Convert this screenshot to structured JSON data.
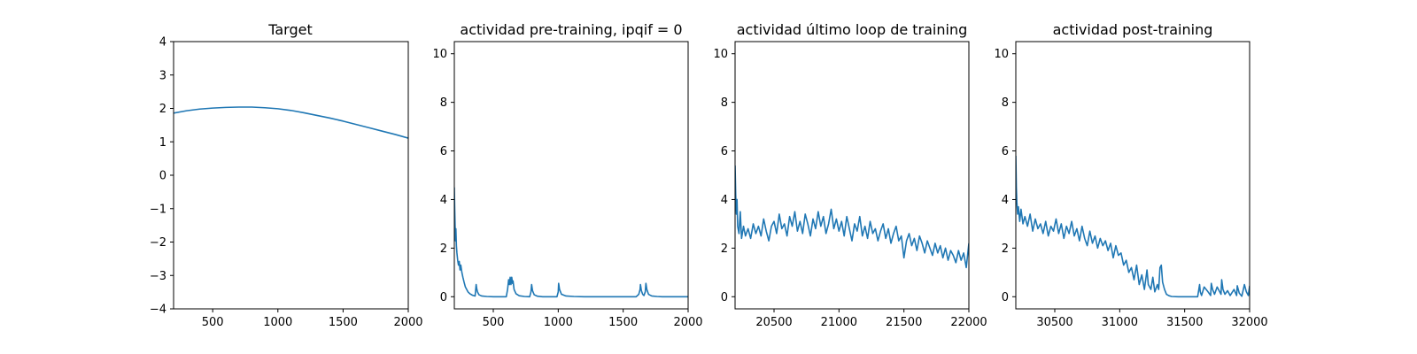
{
  "chart_data": [
    {
      "type": "line",
      "title": "Target",
      "xlabel": "",
      "ylabel": "",
      "xlim": [
        200,
        2000
      ],
      "ylim": [
        -4,
        4
      ],
      "xticks": [
        500,
        1000,
        1500,
        2000
      ],
      "yticks": [
        -4,
        -3,
        -2,
        -1,
        0,
        1,
        2,
        3,
        4
      ],
      "grid": false,
      "series_color": "#1f77b4",
      "series": [
        {
          "x": [
            200,
            300,
            400,
            500,
            600,
            700,
            750,
            800,
            900,
            1000,
            1100,
            1200,
            1300,
            1400,
            1500,
            1600,
            1700,
            1800,
            1900,
            2000
          ],
          "y": [
            1.86,
            1.93,
            1.98,
            2.01,
            2.03,
            2.04,
            2.04,
            2.04,
            2.02,
            1.99,
            1.94,
            1.87,
            1.79,
            1.71,
            1.62,
            1.52,
            1.42,
            1.32,
            1.22,
            1.11
          ]
        }
      ]
    },
    {
      "type": "line",
      "title": "actividad pre-training, ipqif = 0",
      "xlabel": "",
      "ylabel": "",
      "xlim": [
        200,
        2000
      ],
      "ylim": [
        -0.5,
        10.5
      ],
      "xticks": [
        500,
        1000,
        1500,
        2000
      ],
      "yticks": [
        0,
        2,
        4,
        6,
        8,
        10
      ],
      "grid": false,
      "series_color": "#1f77b4",
      "series": [
        {
          "x": [
            200,
            203,
            206,
            209,
            212,
            216,
            220,
            226,
            232,
            238,
            244,
            250,
            258,
            266,
            275,
            285,
            295,
            305,
            320,
            340,
            360,
            368,
            372,
            378,
            390,
            410,
            450,
            500,
            550,
            600,
            610,
            618,
            624,
            630,
            636,
            642,
            648,
            652,
            660,
            675,
            700,
            740,
            780,
            790,
            795,
            802,
            815,
            840,
            880,
            940,
            990,
            1000,
            1003,
            1010,
            1025,
            1060,
            1120,
            1200,
            1300,
            1400,
            1500,
            1600,
            1620,
            1630,
            1633,
            1640,
            1650,
            1660,
            1670,
            1675,
            1682,
            1695,
            1720,
            1760,
            1800,
            1850,
            1900,
            1950,
            2000
          ],
          "y": [
            4.5,
            3.6,
            2.9,
            2.3,
            2.8,
            2.1,
            1.8,
            1.5,
            1.3,
            1.45,
            1.1,
            1.3,
            1.0,
            0.8,
            0.6,
            0.4,
            0.3,
            0.2,
            0.12,
            0.06,
            0.03,
            0.5,
            0.35,
            0.2,
            0.08,
            0.03,
            0.01,
            0.0,
            0.0,
            0.0,
            0.3,
            0.7,
            0.5,
            0.8,
            0.5,
            0.8,
            0.55,
            0.65,
            0.3,
            0.12,
            0.04,
            0.01,
            0.0,
            0.2,
            0.5,
            0.25,
            0.08,
            0.02,
            0.0,
            0.0,
            0.0,
            0.2,
            0.55,
            0.3,
            0.1,
            0.03,
            0.01,
            0.0,
            0.0,
            0.0,
            0.0,
            0.0,
            0.1,
            0.3,
            0.5,
            0.25,
            0.1,
            0.05,
            0.2,
            0.55,
            0.3,
            0.1,
            0.03,
            0.01,
            0.0,
            0.0,
            0.0,
            0.0,
            0.0
          ]
        }
      ]
    },
    {
      "type": "line",
      "title": "actividad último loop de training",
      "xlabel": "",
      "ylabel": "",
      "xlim": [
        20200,
        22000
      ],
      "ylim": [
        -0.5,
        10.5
      ],
      "xticks": [
        20500,
        21000,
        21500,
        22000
      ],
      "yticks": [
        0,
        2,
        4,
        6,
        8,
        10
      ],
      "grid": false,
      "series_color": "#1f77b4",
      "series": [
        {
          "x": [
            20200,
            20205,
            20210,
            20215,
            20220,
            20230,
            20240,
            20250,
            20265,
            20280,
            20300,
            20320,
            20340,
            20360,
            20380,
            20400,
            20420,
            20440,
            20460,
            20480,
            20500,
            20520,
            20540,
            20560,
            20580,
            20600,
            20620,
            20640,
            20660,
            20680,
            20700,
            20720,
            20740,
            20760,
            20780,
            20800,
            20820,
            20840,
            20860,
            20880,
            20900,
            20920,
            20940,
            20960,
            20980,
            21000,
            21020,
            21040,
            21060,
            21080,
            21100,
            21120,
            21140,
            21160,
            21180,
            21200,
            21220,
            21240,
            21260,
            21280,
            21300,
            21320,
            21340,
            21360,
            21380,
            21400,
            21420,
            21440,
            21460,
            21480,
            21500,
            21520,
            21540,
            21560,
            21580,
            21600,
            21620,
            21640,
            21660,
            21680,
            21700,
            21720,
            21740,
            21760,
            21780,
            21800,
            21820,
            21840,
            21860,
            21880,
            21900,
            21920,
            21940,
            21960,
            21980,
            22000
          ],
          "y": [
            5.4,
            4.2,
            3.4,
            4.0,
            2.9,
            2.6,
            3.5,
            2.4,
            2.9,
            2.5,
            2.8,
            2.4,
            3.0,
            2.6,
            2.9,
            2.5,
            3.2,
            2.7,
            2.3,
            2.9,
            3.1,
            2.6,
            3.4,
            2.8,
            3.0,
            2.5,
            3.3,
            2.9,
            3.5,
            2.7,
            3.1,
            2.6,
            3.4,
            3.0,
            2.5,
            3.2,
            2.8,
            3.5,
            2.9,
            3.3,
            2.6,
            3.0,
            3.6,
            2.8,
            3.2,
            2.7,
            3.1,
            2.5,
            3.3,
            2.8,
            2.3,
            3.0,
            2.7,
            3.3,
            2.5,
            2.9,
            2.4,
            3.1,
            2.6,
            2.8,
            2.3,
            2.7,
            3.0,
            2.4,
            2.8,
            2.2,
            2.6,
            2.9,
            2.3,
            2.5,
            1.6,
            2.3,
            2.6,
            2.1,
            2.4,
            1.9,
            2.5,
            2.2,
            1.8,
            2.3,
            2.0,
            1.7,
            2.2,
            1.8,
            2.1,
            1.6,
            2.0,
            1.5,
            1.9,
            1.7,
            1.4,
            1.9,
            1.5,
            1.8,
            1.2,
            2.2
          ]
        }
      ]
    },
    {
      "type": "line",
      "title": "actividad post-training",
      "xlabel": "",
      "ylabel": "",
      "xlim": [
        30200,
        32000
      ],
      "ylim": [
        -0.5,
        10.5
      ],
      "xticks": [
        30500,
        31000,
        31500,
        32000
      ],
      "yticks": [
        0,
        2,
        4,
        6,
        8,
        10
      ],
      "grid": false,
      "series_color": "#1f77b4",
      "series": [
        {
          "x": [
            30200,
            30204,
            30208,
            30214,
            30220,
            30230,
            30240,
            30255,
            30270,
            30290,
            30310,
            30330,
            30350,
            30370,
            30390,
            30410,
            30430,
            30450,
            30470,
            30490,
            30510,
            30530,
            30550,
            30570,
            30590,
            30610,
            30630,
            30650,
            30670,
            30690,
            30710,
            30730,
            30750,
            30770,
            30790,
            30810,
            30830,
            30850,
            30870,
            30890,
            30910,
            30930,
            30950,
            30970,
            30990,
            31010,
            31030,
            31050,
            31070,
            31090,
            31110,
            31130,
            31150,
            31170,
            31190,
            31200,
            31210,
            31220,
            31240,
            31255,
            31270,
            31290,
            31300,
            31310,
            31320,
            31330,
            31345,
            31360,
            31380,
            31400,
            31450,
            31500,
            31550,
            31600,
            31615,
            31620,
            31630,
            31650,
            31680,
            31700,
            31705,
            31715,
            31730,
            31750,
            31780,
            31785,
            31795,
            31810,
            31830,
            31850,
            31880,
            31900,
            31905,
            31920,
            31940,
            31960,
            31975,
            31990,
            32000
          ],
          "y": [
            5.8,
            4.5,
            3.9,
            3.4,
            3.7,
            3.1,
            3.6,
            3.0,
            3.3,
            2.9,
            3.4,
            2.7,
            3.2,
            2.8,
            3.0,
            2.6,
            3.1,
            2.5,
            2.9,
            2.7,
            3.2,
            2.6,
            3.0,
            2.4,
            2.9,
            2.6,
            3.1,
            2.5,
            2.8,
            2.3,
            2.9,
            2.4,
            2.1,
            2.7,
            2.2,
            2.5,
            2.0,
            2.4,
            2.1,
            2.3,
            1.9,
            2.2,
            1.6,
            2.1,
            1.7,
            1.8,
            1.3,
            1.5,
            1.0,
            1.2,
            0.7,
            1.3,
            0.5,
            0.9,
            0.3,
            0.7,
            1.1,
            0.5,
            0.3,
            0.8,
            0.2,
            0.5,
            0.3,
            1.2,
            1.3,
            0.6,
            0.3,
            0.1,
            0.04,
            0.01,
            0.0,
            0.0,
            0.0,
            0.0,
            0.5,
            0.2,
            0.05,
            0.4,
            0.2,
            0.05,
            0.55,
            0.3,
            0.1,
            0.4,
            0.1,
            0.7,
            0.3,
            0.1,
            0.25,
            0.05,
            0.3,
            0.05,
            0.45,
            0.15,
            0.02,
            0.5,
            0.2,
            0.05,
            0.45
          ]
        }
      ]
    }
  ]
}
